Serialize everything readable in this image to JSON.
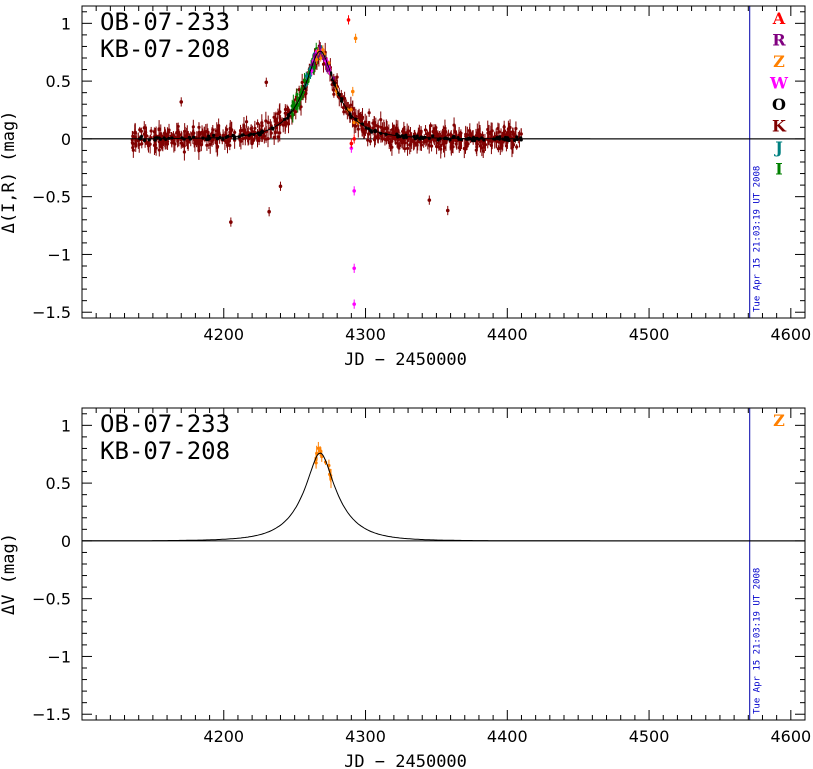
{
  "chart_data": [
    {
      "type": "scatter",
      "event_labels": [
        "OB-07-233",
        "KB-07-208"
      ],
      "xlabel": "JD − 2450000",
      "ylabel": "Δ(I,R) (mag)",
      "xlim": [
        4100,
        4610
      ],
      "ylim": [
        -1.55,
        1.15
      ],
      "x_ticks": [
        4200,
        4300,
        4400,
        4500,
        4600
      ],
      "y_ticks": [
        1,
        0.5,
        0,
        -0.5,
        -1,
        -1.5
      ],
      "y_tick_labels": [
        "1",
        "0.5",
        "0",
        "−0.5",
        "−1",
        "−1.5"
      ],
      "timestamp_line_x": 4571,
      "timestamp_text": "Tue Apr 15 21:03:19 UT 2008",
      "legend": [
        {
          "label": "A",
          "color": "#ff0000"
        },
        {
          "label": "R",
          "color": "#800080"
        },
        {
          "label": "Z",
          "color": "#ff8000"
        },
        {
          "label": "W",
          "color": "#ff00ff"
        },
        {
          "label": "O",
          "color": "#000000"
        },
        {
          "label": "K",
          "color": "#800000"
        },
        {
          "label": "J",
          "color": "#008080"
        },
        {
          "label": "I",
          "color": "#008000"
        }
      ],
      "model_curve": {
        "t0": 4268,
        "u0": 0.3,
        "tE": 25,
        "peak": 0.76
      },
      "series": [
        {
          "name": "K",
          "color": "#800000",
          "x_range": [
            4135,
            4410
          ],
          "n": 700,
          "noise": 0.09,
          "err": 0.06
        },
        {
          "name": "O",
          "color": "#000000",
          "x_range": [
            4140,
            4410
          ],
          "n": 160,
          "noise": 0.02,
          "err": 0
        },
        {
          "name": "I",
          "color": "#008000",
          "x_range": [
            4248,
            4268
          ],
          "n": 40,
          "noise": 0.07,
          "err": 0.05
        },
        {
          "name": "J",
          "color": "#008080",
          "x_range": [
            4258,
            4275
          ],
          "n": 20,
          "noise": 0.05,
          "err": 0.03
        },
        {
          "name": "W",
          "color": "#ff00ff",
          "x_range": [
            4262,
            4275
          ],
          "n": 15,
          "noise": 0.04,
          "err": 0.03
        },
        {
          "name": "R",
          "color": "#800080",
          "x_range": [
            4262,
            4278
          ],
          "n": 18,
          "noise": 0.05,
          "err": 0.03
        },
        {
          "name": "Z",
          "color": "#ff8000",
          "x_range": [
            4265,
            4295
          ],
          "n": 12,
          "noise": 0.06,
          "err": 0.03
        }
      ],
      "outliers": [
        {
          "x": 4205,
          "y": -0.72,
          "color": "#800000"
        },
        {
          "x": 4232,
          "y": -0.63,
          "color": "#800000"
        },
        {
          "x": 4240,
          "y": -0.41,
          "color": "#800000"
        },
        {
          "x": 4230,
          "y": 0.49,
          "color": "#800000"
        },
        {
          "x": 4170,
          "y": 0.32,
          "color": "#800000"
        },
        {
          "x": 4345,
          "y": -0.53,
          "color": "#800000"
        },
        {
          "x": 4358,
          "y": -0.62,
          "color": "#800000"
        },
        {
          "x": 4292,
          "y": -1.12,
          "color": "#ff00ff"
        },
        {
          "x": 4292,
          "y": -1.43,
          "color": "#ff00ff"
        },
        {
          "x": 4292,
          "y": -0.45,
          "color": "#ff00ff"
        },
        {
          "x": 4290,
          "y": -0.08,
          "color": "#ff00ff"
        },
        {
          "x": 4288,
          "y": 1.03,
          "color": "#ff0000"
        },
        {
          "x": 4293,
          "y": 0.87,
          "color": "#ff8000"
        },
        {
          "x": 4291,
          "y": 0.41,
          "color": "#ff8000"
        },
        {
          "x": 4292,
          "y": 0.0,
          "color": "#ff0000"
        },
        {
          "x": 4290,
          "y": -0.04,
          "color": "#ff0000"
        }
      ]
    },
    {
      "type": "scatter",
      "event_labels": [
        "OB-07-233",
        "KB-07-208"
      ],
      "xlabel": "JD − 2450000",
      "ylabel": "ΔV (mag)",
      "xlim": [
        4100,
        4610
      ],
      "ylim": [
        -1.55,
        1.15
      ],
      "x_ticks": [
        4200,
        4300,
        4400,
        4500,
        4600
      ],
      "y_ticks": [
        1,
        0.5,
        0,
        -0.5,
        -1,
        -1.5
      ],
      "y_tick_labels": [
        "1",
        "0.5",
        "0",
        "−0.5",
        "−1",
        "−1.5"
      ],
      "timestamp_line_x": 4571,
      "timestamp_text": "Tue Apr 15 21:03:19 UT 2008",
      "legend": [
        {
          "label": "Z",
          "color": "#ff8000"
        }
      ],
      "model_curve": {
        "t0": 4268,
        "u0": 0.3,
        "tE": 25,
        "peak": 0.76
      },
      "series": [
        {
          "name": "Z",
          "color": "#ff8000",
          "x_range": [
            4265,
            4277
          ],
          "n": 14,
          "noise": 0.05,
          "err": 0.06
        }
      ],
      "outliers": []
    }
  ]
}
